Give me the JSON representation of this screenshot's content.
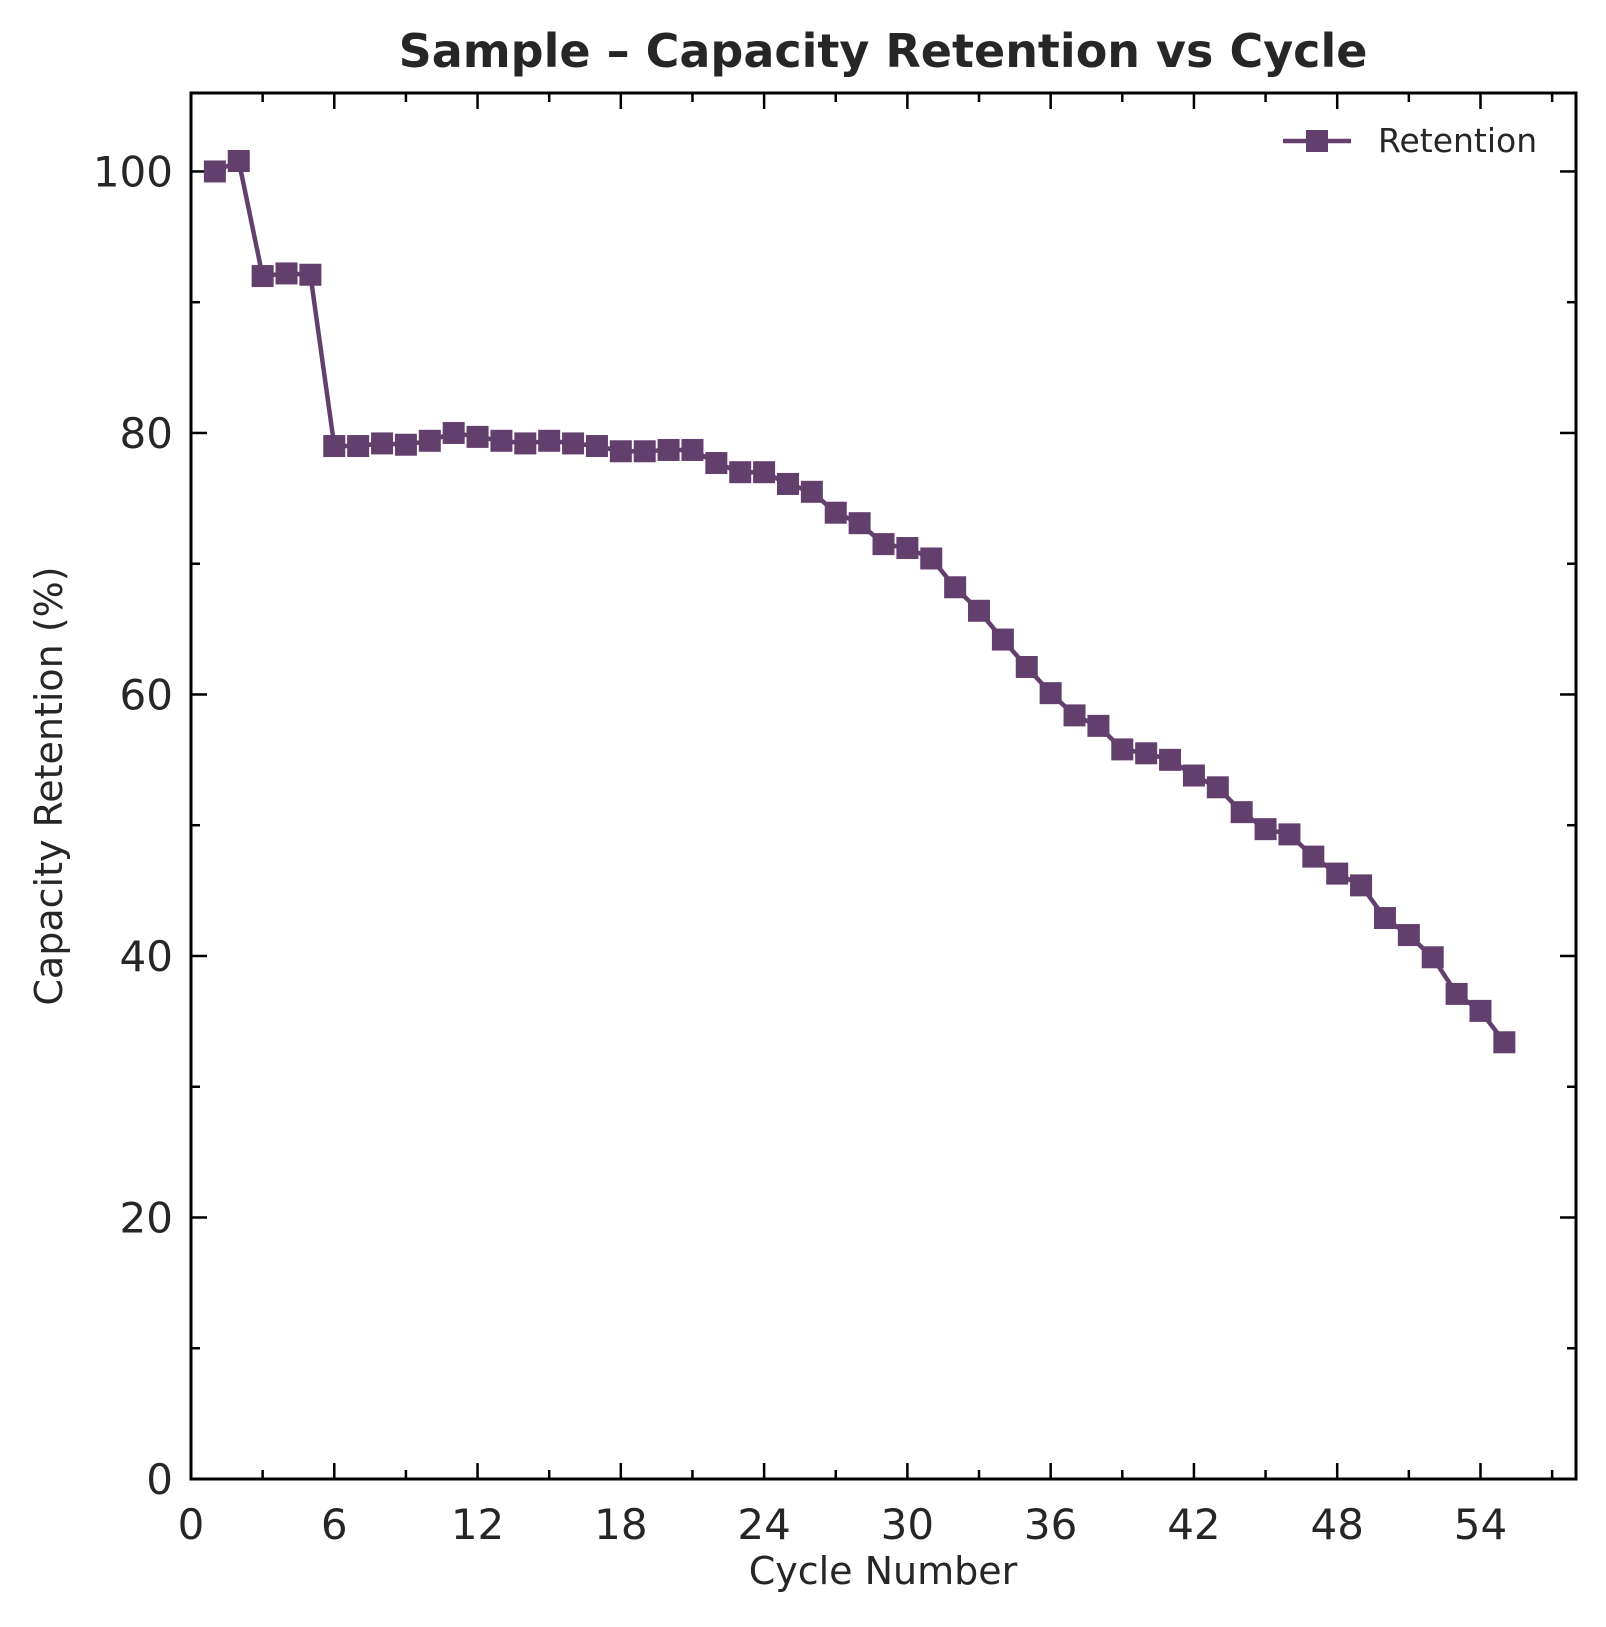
{
  "chart_data": {
    "type": "line",
    "title": "Sample – Capacity Retention vs Cycle",
    "xlabel": "Cycle Number",
    "ylabel": "Capacity Retention (%)",
    "xlim": [
      0,
      58
    ],
    "ylim": [
      0,
      106
    ],
    "xticks": [
      0,
      6,
      12,
      18,
      24,
      30,
      36,
      42,
      48,
      54
    ],
    "xticks_minor": [
      3,
      9,
      15,
      21,
      27,
      33,
      39,
      45,
      51,
      57
    ],
    "yticks": [
      0,
      20,
      40,
      60,
      80,
      100
    ],
    "yticks_minor": [
      10,
      30,
      50,
      70,
      90
    ],
    "grid": false,
    "legend_position": "top-right",
    "color": "#633f6e",
    "marker": "square",
    "series": [
      {
        "name": "Retention",
        "x": [
          1,
          2,
          3,
          4,
          5,
          6,
          7,
          8,
          9,
          10,
          11,
          12,
          13,
          14,
          15,
          16,
          17,
          18,
          19,
          20,
          21,
          22,
          23,
          24,
          25,
          26,
          27,
          28,
          29,
          30,
          31,
          32,
          33,
          34,
          35,
          36,
          37,
          38,
          39,
          40,
          41,
          42,
          43,
          44,
          45,
          46,
          47,
          48,
          49,
          50,
          51,
          52,
          53,
          54,
          55
        ],
        "values": [
          100.0,
          100.8,
          92.0,
          92.2,
          92.1,
          79.0,
          79.0,
          79.2,
          79.1,
          79.4,
          80.0,
          79.7,
          79.4,
          79.2,
          79.4,
          79.2,
          79.0,
          78.6,
          78.6,
          78.7,
          78.7,
          77.7,
          77.0,
          77.0,
          76.1,
          75.5,
          73.9,
          73.1,
          71.5,
          71.2,
          70.4,
          68.2,
          66.4,
          64.2,
          62.1,
          60.1,
          58.4,
          57.6,
          55.8,
          55.5,
          55.0,
          53.8,
          52.9,
          51.0,
          49.7,
          49.3,
          47.6,
          46.3,
          45.4,
          42.9,
          41.6,
          39.9,
          37.1,
          35.8,
          33.4
        ]
      }
    ]
  }
}
